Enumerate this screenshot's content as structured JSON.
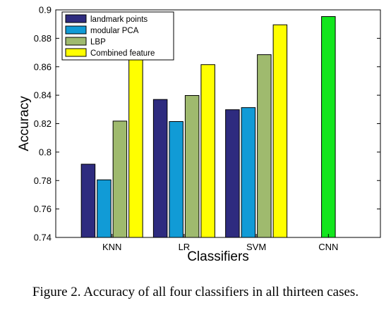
{
  "caption": "Figure 2. Accuracy of all four classifiers in all thirteen cases.",
  "chart_data": {
    "type": "bar",
    "categories": [
      "KNN",
      "LR",
      "SVM",
      "CNN"
    ],
    "xlabel": "Classifiers",
    "ylabel": "Accuracy",
    "ylim": [
      0.74,
      0.9
    ],
    "yticks": [
      "0.74",
      "0.76",
      "0.78",
      "0.8",
      "0.82",
      "0.84",
      "0.86",
      "0.88",
      "0.9"
    ],
    "grid": false,
    "legend_position": "top-left",
    "series": [
      {
        "name": "landmark points",
        "color": "#2e2b7f",
        "values": [
          0.7915,
          0.837,
          0.8298,
          null
        ]
      },
      {
        "name": "modular PCA",
        "color": "#119bd6",
        "values": [
          0.7805,
          0.8215,
          0.8313,
          null
        ]
      },
      {
        "name": "LBP",
        "color": "#9fba6e",
        "values": [
          0.8218,
          0.8398,
          0.8685,
          null
        ]
      },
      {
        "name": "Combined feature",
        "color": "#ffff00",
        "values": [
          0.866,
          0.8615,
          0.8895,
          null
        ]
      },
      {
        "name": "",
        "color": "#12e61d",
        "values": [
          null,
          null,
          null,
          0.8953
        ]
      }
    ]
  }
}
